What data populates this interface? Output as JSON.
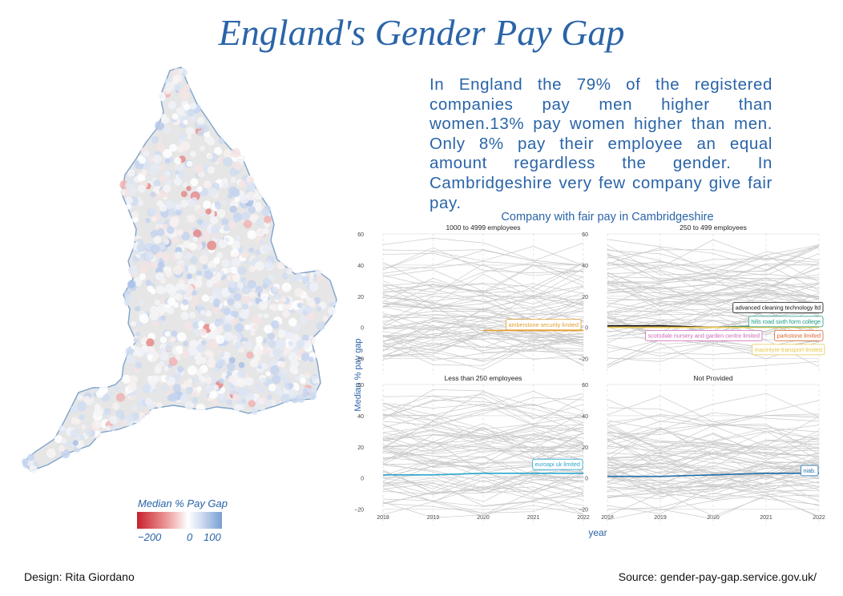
{
  "page": {
    "title": "England's Gender Pay Gap",
    "intro": "In England the 79% of the registered companies pay men higher than women.13% pay women higher than men. Only 8% pay their employee an equal amount regardless the gender. In Cambridgeshire very few company give fair pay.",
    "design_credit": "Design: Rita Giordano",
    "source": "Source: gender-pay-gap.service.gov.uk/"
  },
  "map_legend": {
    "title": "Median % Pay Gap",
    "tick_labels": [
      "−200",
      "0",
      "100"
    ],
    "colors": {
      "low": "#c8212b",
      "mid": "#ffffff",
      "high": "#7a9fd4"
    }
  },
  "colors": {
    "accent": "#2a64a8",
    "map_fill": "#e6e6e6",
    "map_border": "#7fa3cd",
    "background_line": "#c9c9c9",
    "grid": "#d6d6d6"
  },
  "chart_data": {
    "type": "line",
    "title": "Company with fair pay in Cambridgeshire",
    "xlabel": "year",
    "ylabel": "Median % pay gap",
    "x": [
      2018,
      2019,
      2020,
      2021,
      2022
    ],
    "ylim": [
      -30,
      60
    ],
    "yticks": [
      -20,
      0,
      20,
      40,
      60
    ],
    "grid": true,
    "panels": [
      {
        "label": "1000 to 4999 employees",
        "series": [
          {
            "name": "amberstone security limited",
            "color": "#e0a032",
            "x": [
              2020,
              2021,
              2022
            ],
            "values": [
              -2,
              -2,
              -2
            ]
          }
        ]
      },
      {
        "label": "250 to 499 employees",
        "series": [
          {
            "name": "advanced cleaning technology ltd",
            "color": "#111111",
            "x": [
              2018,
              2019,
              2020,
              2021,
              2022
            ],
            "values": [
              1,
              1,
              0,
              1,
              2
            ]
          },
          {
            "name": "hills road sixth form college",
            "color": "#1a9a84",
            "x": [
              2018,
              2019,
              2020,
              2021,
              2022
            ],
            "values": [
              0,
              0,
              0,
              1,
              0
            ]
          },
          {
            "name": "parkstone limited",
            "color": "#d9622b",
            "x": [
              2018,
              2019,
              2020,
              2021,
              2022
            ],
            "values": [
              0,
              0,
              0,
              0,
              0
            ]
          },
          {
            "name": "scotsdale nursery and garden centre limited",
            "color": "#cc66b8",
            "x": [
              2018,
              2019,
              2020,
              2021,
              2022
            ],
            "values": [
              0,
              0,
              0,
              0,
              0
            ]
          },
          {
            "name": "macintyre transport limited",
            "color": "#e6c84a",
            "x": [
              2018,
              2019,
              2020,
              2021,
              2022
            ],
            "values": [
              0,
              0,
              0,
              0,
              0
            ]
          }
        ]
      },
      {
        "label": "Less than 250 employees",
        "series": [
          {
            "name": "euroapi uk limited",
            "color": "#2aa5c9",
            "x": [
              2018,
              2019,
              2020,
              2021,
              2022
            ],
            "values": [
              2,
              2,
              3,
              3,
              3
            ]
          }
        ]
      },
      {
        "label": "Not Provided",
        "series": [
          {
            "name": "niab.",
            "color": "#1f6da8",
            "x": [
              2018,
              2019,
              2020,
              2021,
              2022
            ],
            "values": [
              1,
              1,
              2,
              3,
              3
            ]
          }
        ]
      }
    ]
  }
}
